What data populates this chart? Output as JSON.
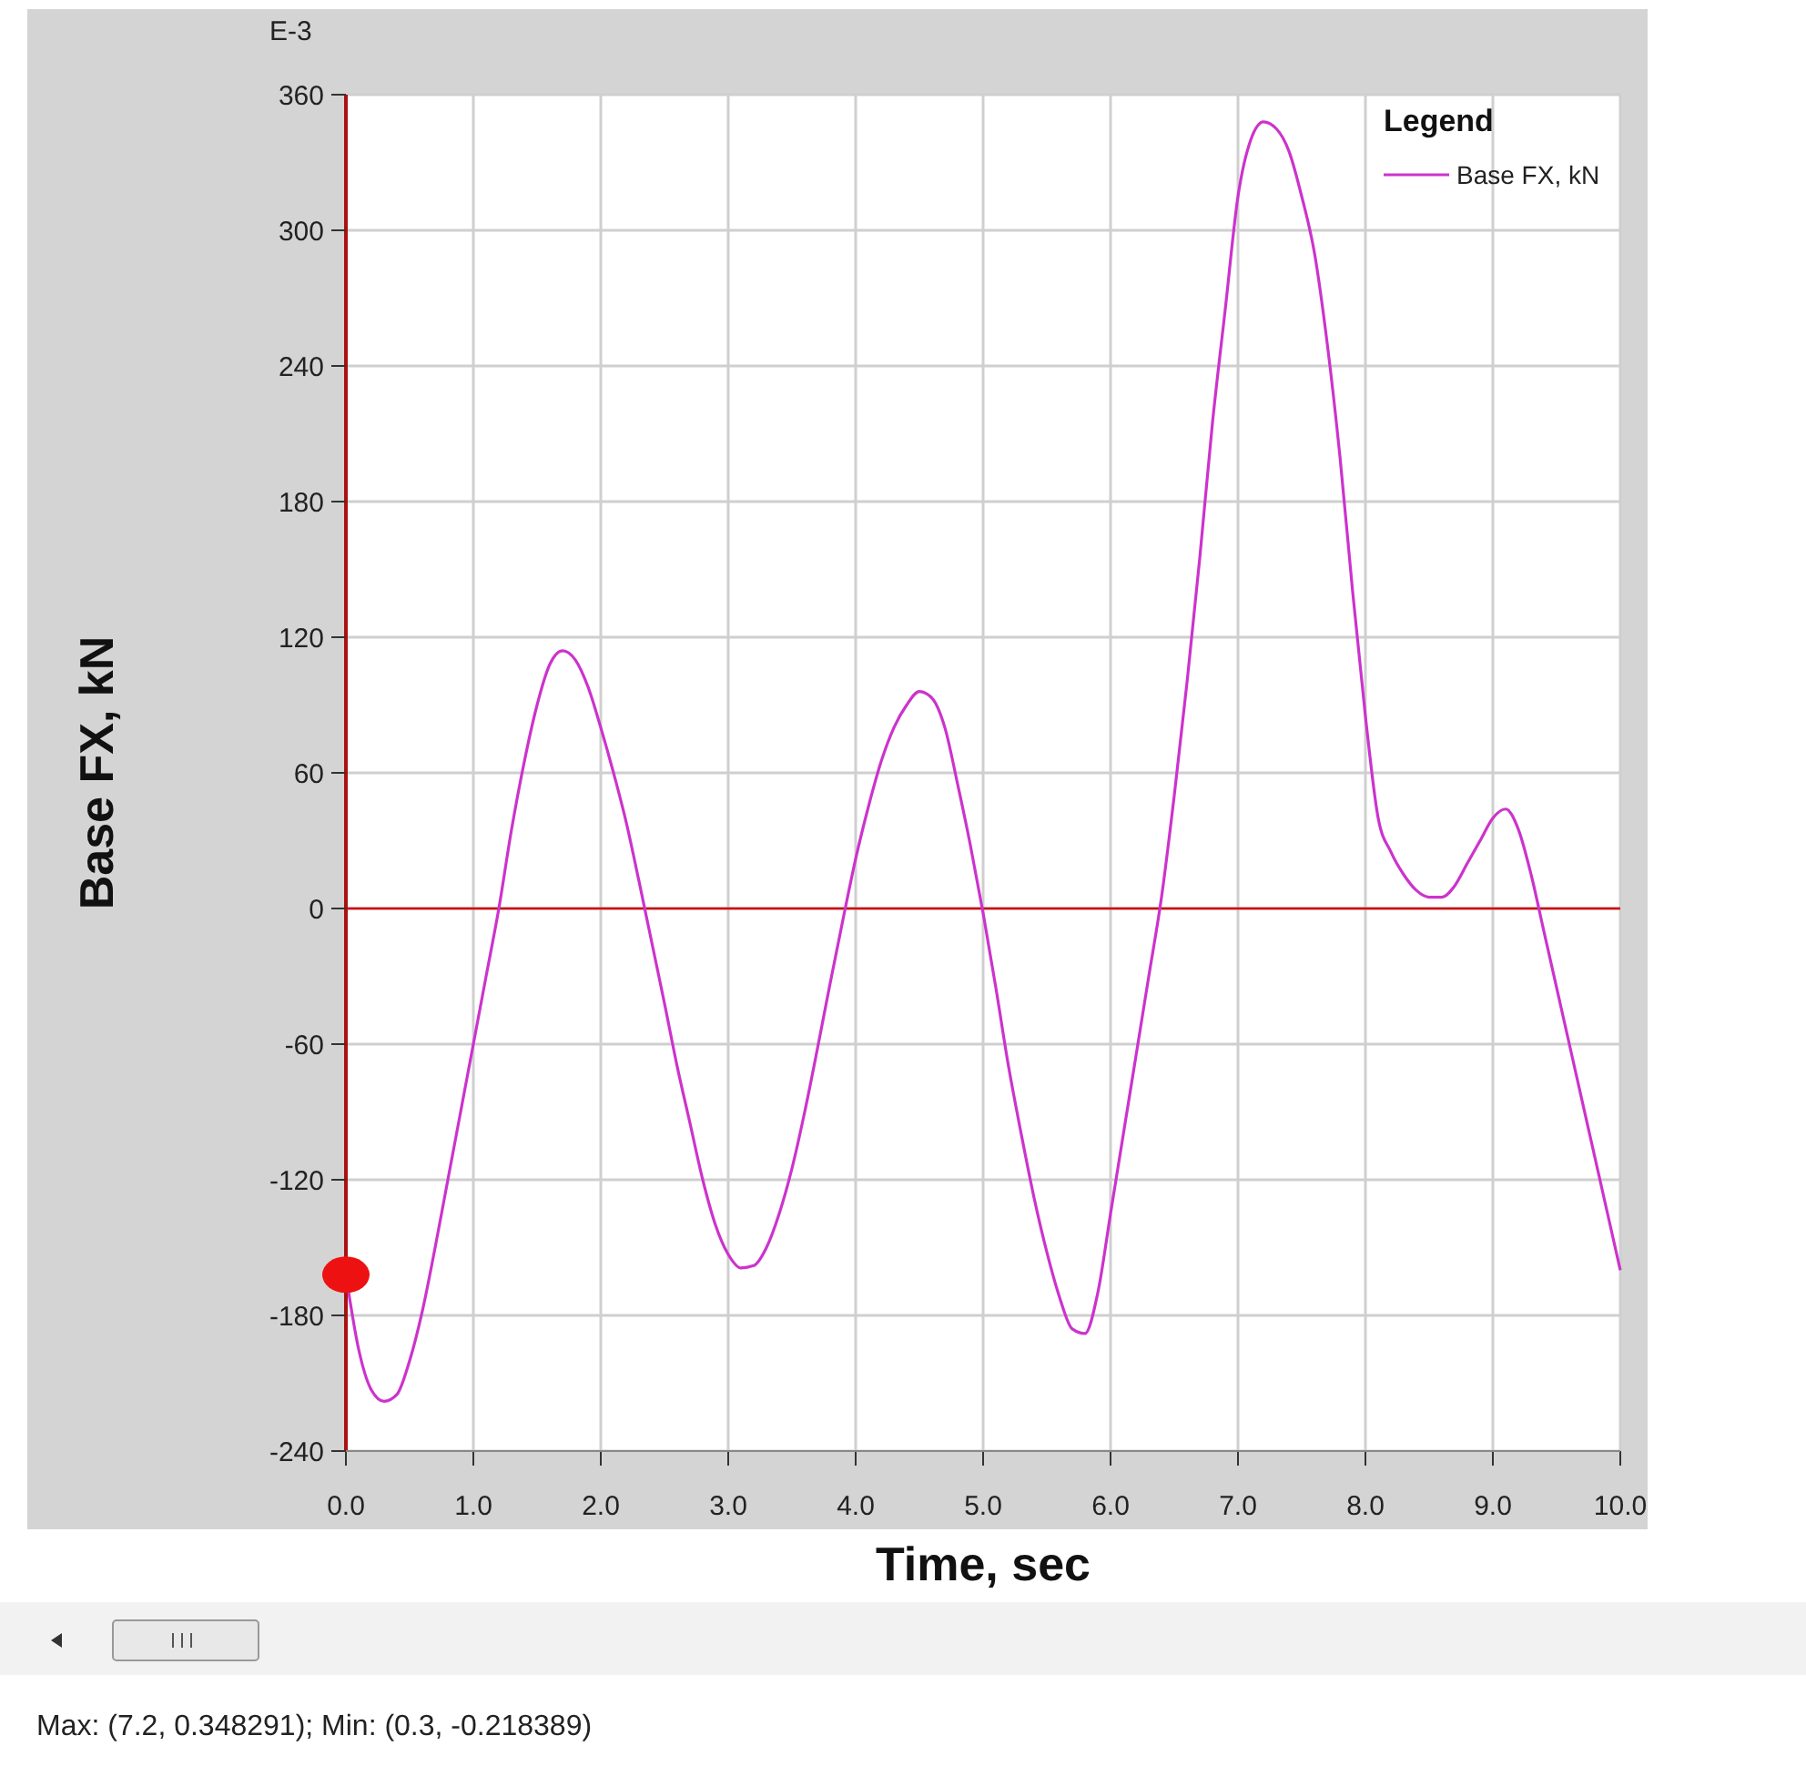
{
  "chart_data": {
    "type": "line",
    "xlabel": "Time,  sec",
    "ylabel": "Base FX, kN",
    "legend_title": "Legend",
    "annotations": [
      "E-3",
      "Max: (7.2, 0.348291);   Min: (0.3, -0.218389)"
    ],
    "x": [
      0,
      0.1,
      0.2,
      0.3,
      0.4,
      0.5,
      0.6,
      0.7,
      0.8,
      0.9,
      1.0,
      1.1,
      1.2,
      1.3,
      1.4,
      1.5,
      1.6,
      1.7,
      1.8,
      1.9,
      2.0,
      2.1,
      2.2,
      2.3,
      2.4,
      2.5,
      2.6,
      2.7,
      2.8,
      2.9,
      3.0,
      3.1,
      3.2,
      3.3,
      3.4,
      3.5,
      3.6,
      3.7,
      3.8,
      3.9,
      4.0,
      4.1,
      4.2,
      4.3,
      4.4,
      4.5,
      4.6,
      4.7,
      4.8,
      4.9,
      5.0,
      5.1,
      5.2,
      5.3,
      5.4,
      5.5,
      5.6,
      5.7,
      5.8,
      5.9,
      6.0,
      6.1,
      6.2,
      6.3,
      6.4,
      6.5,
      6.6,
      6.7,
      6.8,
      6.9,
      7.0,
      7.1,
      7.2,
      7.3,
      7.4,
      7.5,
      7.6,
      7.7,
      7.8,
      7.9,
      8.0,
      8.1,
      8.2,
      8.3,
      8.4,
      8.5,
      8.6,
      8.7,
      8.8,
      8.9,
      9.0,
      9.1,
      9.2,
      9.3,
      9.4,
      9.5,
      9.6,
      9.7,
      9.8,
      9.9,
      10.0
    ],
    "series": [
      {
        "name": "Base FX, kN",
        "color": "#cc33cc",
        "values": [
          -162,
          -195,
          -213,
          -218,
          -215,
          -200,
          -178,
          -150,
          -120,
          -90,
          -60,
          -30,
          0,
          35,
          65,
          90,
          108,
          114,
          110,
          98,
          80,
          60,
          38,
          12,
          -15,
          -42,
          -70,
          -95,
          -120,
          -140,
          -153,
          -159,
          -158,
          -150,
          -135,
          -115,
          -90,
          -62,
          -33,
          -5,
          22,
          45,
          65,
          80,
          90,
          96,
          93,
          80,
          55,
          28,
          -2,
          -35,
          -70,
          -100,
          -128,
          -152,
          -172,
          -186,
          -188,
          -170,
          -135,
          -100,
          -65,
          -30,
          5,
          50,
          100,
          155,
          215,
          265,
          315,
          340,
          348,
          345,
          335,
          315,
          290,
          250,
          200,
          140,
          85,
          40,
          25,
          15,
          8,
          5,
          5,
          10,
          20,
          30,
          40,
          44,
          35,
          15,
          -10,
          -35,
          -60,
          -85,
          -110,
          -135,
          -160
        ]
      }
    ],
    "xlim": [
      0,
      10
    ],
    "xticks": [
      {
        "value": 0,
        "label": "0.0"
      },
      {
        "value": 1,
        "label": "1.0"
      },
      {
        "value": 2,
        "label": "2.0"
      },
      {
        "value": 3,
        "label": "3.0"
      },
      {
        "value": 4,
        "label": "4.0"
      },
      {
        "value": 5,
        "label": "5.0"
      },
      {
        "value": 6,
        "label": "6.0"
      },
      {
        "value": 7,
        "label": "7.0"
      },
      {
        "value": 8,
        "label": "8.0"
      },
      {
        "value": 9,
        "label": "9.0"
      },
      {
        "value": 10,
        "label": "10.0"
      }
    ],
    "ylim": [
      -240,
      360
    ],
    "yticks": [
      -240,
      -180,
      -120,
      -60,
      0,
      60,
      120,
      180,
      240,
      300,
      360
    ],
    "ref_lines": [
      {
        "axis": "y",
        "value": 0,
        "color": "#cc0000"
      }
    ],
    "grid": true,
    "legend": "top right"
  }
}
